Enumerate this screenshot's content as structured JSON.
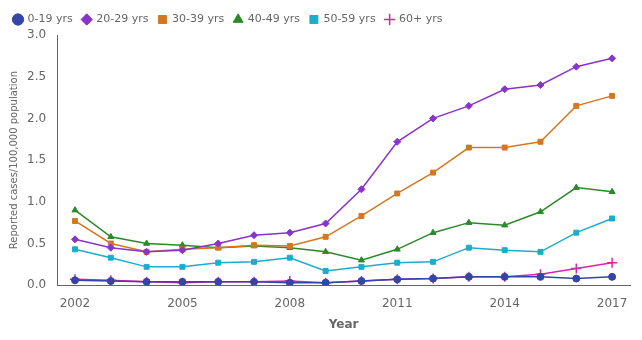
{
  "chart_data": {
    "type": "line",
    "x": [
      2002,
      2003,
      2004,
      2005,
      2006,
      2007,
      2008,
      2009,
      2010,
      2011,
      2012,
      2013,
      2014,
      2015,
      2016,
      2017
    ],
    "series": [
      {
        "name": "0-19 yrs",
        "color": "#3444a8",
        "marker": "circle",
        "values": [
          0.06,
          0.05,
          0.04,
          0.04,
          0.04,
          0.04,
          0.03,
          0.03,
          0.05,
          0.07,
          0.08,
          0.1,
          0.1,
          0.1,
          0.08,
          0.1
        ]
      },
      {
        "name": "20-29 yrs",
        "color": "#8833cc",
        "marker": "diamond",
        "values": [
          0.55,
          0.45,
          0.4,
          0.42,
          0.5,
          0.6,
          0.63,
          0.74,
          1.15,
          1.72,
          2.0,
          2.15,
          2.35,
          2.4,
          2.62,
          2.72
        ]
      },
      {
        "name": "30-39 yrs",
        "color": "#d47820",
        "marker": "square",
        "values": [
          0.77,
          0.5,
          0.4,
          0.43,
          0.45,
          0.48,
          0.47,
          0.58,
          0.83,
          1.1,
          1.35,
          1.65,
          1.65,
          1.72,
          2.15,
          2.27
        ]
      },
      {
        "name": "40-49 yrs",
        "color": "#2a8a2a",
        "marker": "triangle",
        "values": [
          0.9,
          0.58,
          0.5,
          0.48,
          0.45,
          0.47,
          0.45,
          0.4,
          0.3,
          0.43,
          0.63,
          0.75,
          0.72,
          0.88,
          1.17,
          1.12
        ]
      },
      {
        "name": "50-59 yrs",
        "color": "#1aadcc",
        "marker": "square",
        "values": [
          0.43,
          0.33,
          0.22,
          0.22,
          0.27,
          0.28,
          0.33,
          0.17,
          0.22,
          0.27,
          0.28,
          0.45,
          0.42,
          0.4,
          0.63,
          0.8
        ]
      },
      {
        "name": "60+ yrs",
        "color": "#dd22aa",
        "marker": "plus",
        "values": [
          0.07,
          0.06,
          0.04,
          0.03,
          0.04,
          0.04,
          0.05,
          0.03,
          0.05,
          0.07,
          0.08,
          0.1,
          0.1,
          0.13,
          0.2,
          0.27
        ]
      }
    ],
    "xlabel": "Year",
    "ylabel": "Reported cases/100,000 population",
    "xlim": [
      2001.5,
      2017.5
    ],
    "xticks": [
      2002,
      2005,
      2008,
      2011,
      2014,
      2017
    ],
    "ylim": [
      0,
      3.0
    ],
    "yticks": [
      {
        "value": 0,
        "label": "0.0"
      },
      0.5,
      {
        "value": 1,
        "label": "1.0"
      },
      1.5,
      {
        "value": 2,
        "label": "2.0"
      },
      2.5,
      {
        "value": 3,
        "label": "3.0"
      }
    ],
    "grid": false,
    "legend": "upper left"
  }
}
